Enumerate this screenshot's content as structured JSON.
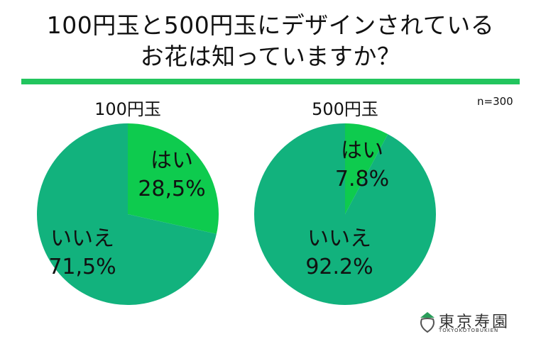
{
  "title_line1": "100円玉と500円玉にデザインされている",
  "title_line2": "お花は知っていますか？",
  "n_label": "n=300",
  "colors": {
    "rule": "#22c55e",
    "yes": "#0ecb4e",
    "no": "#12b27d"
  },
  "chart_data": [
    {
      "type": "pie",
      "title": "100円玉",
      "slices": [
        {
          "label": "はい",
          "value_label": "28,5%",
          "value": 28.5
        },
        {
          "label": "いいえ",
          "value_label": "71,5%",
          "value": 71.5
        }
      ]
    },
    {
      "type": "pie",
      "title": "500円玉",
      "slices": [
        {
          "label": "はい",
          "value_label": "7.8%",
          "value": 7.8
        },
        {
          "label": "いいえ",
          "value_label": "92.2%",
          "value": 92.2
        }
      ]
    }
  ],
  "logo": {
    "name": "東京寿園",
    "sub": "TOKYOKOTOBUKIEN"
  }
}
